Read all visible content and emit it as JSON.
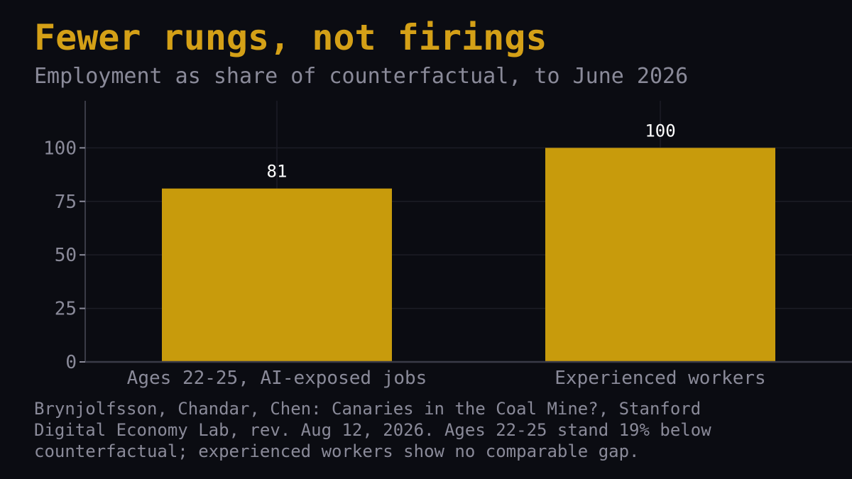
{
  "header": {
    "title": "Fewer rungs, not firings",
    "subtitle": "Employment as share of counterfactual, to June 2026"
  },
  "note": "Brynjolfsson, Chandar, Chen: Canaries in the Coal Mine?, Stanford\nDigital Economy Lab, rev. Aug 12, 2026. Ages 22-25 stand 19% below\ncounterfactual; experienced workers show no comparable gap.",
  "chart_data": {
    "type": "bar",
    "title": "Fewer rungs, not firings",
    "subtitle": "Employment as share of counterfactual, to June 2026",
    "categories": [
      "Ages 22-25, AI-exposed jobs",
      "Experienced workers"
    ],
    "values": [
      81,
      100
    ],
    "value_labels": [
      "81",
      "100"
    ],
    "yticks": [
      0,
      25,
      50,
      75,
      100
    ],
    "ylim": [
      0,
      122
    ],
    "xlabel": "",
    "ylabel": "",
    "grid": true,
    "legend": "none",
    "colors": {
      "bar": "#c89b0c",
      "background": "#0b0c12",
      "title": "#d4a017",
      "muted_text": "#8a8a99",
      "value_label": "#ffffff",
      "grid": "#1c1d26",
      "axis": "#3a3b47"
    }
  }
}
